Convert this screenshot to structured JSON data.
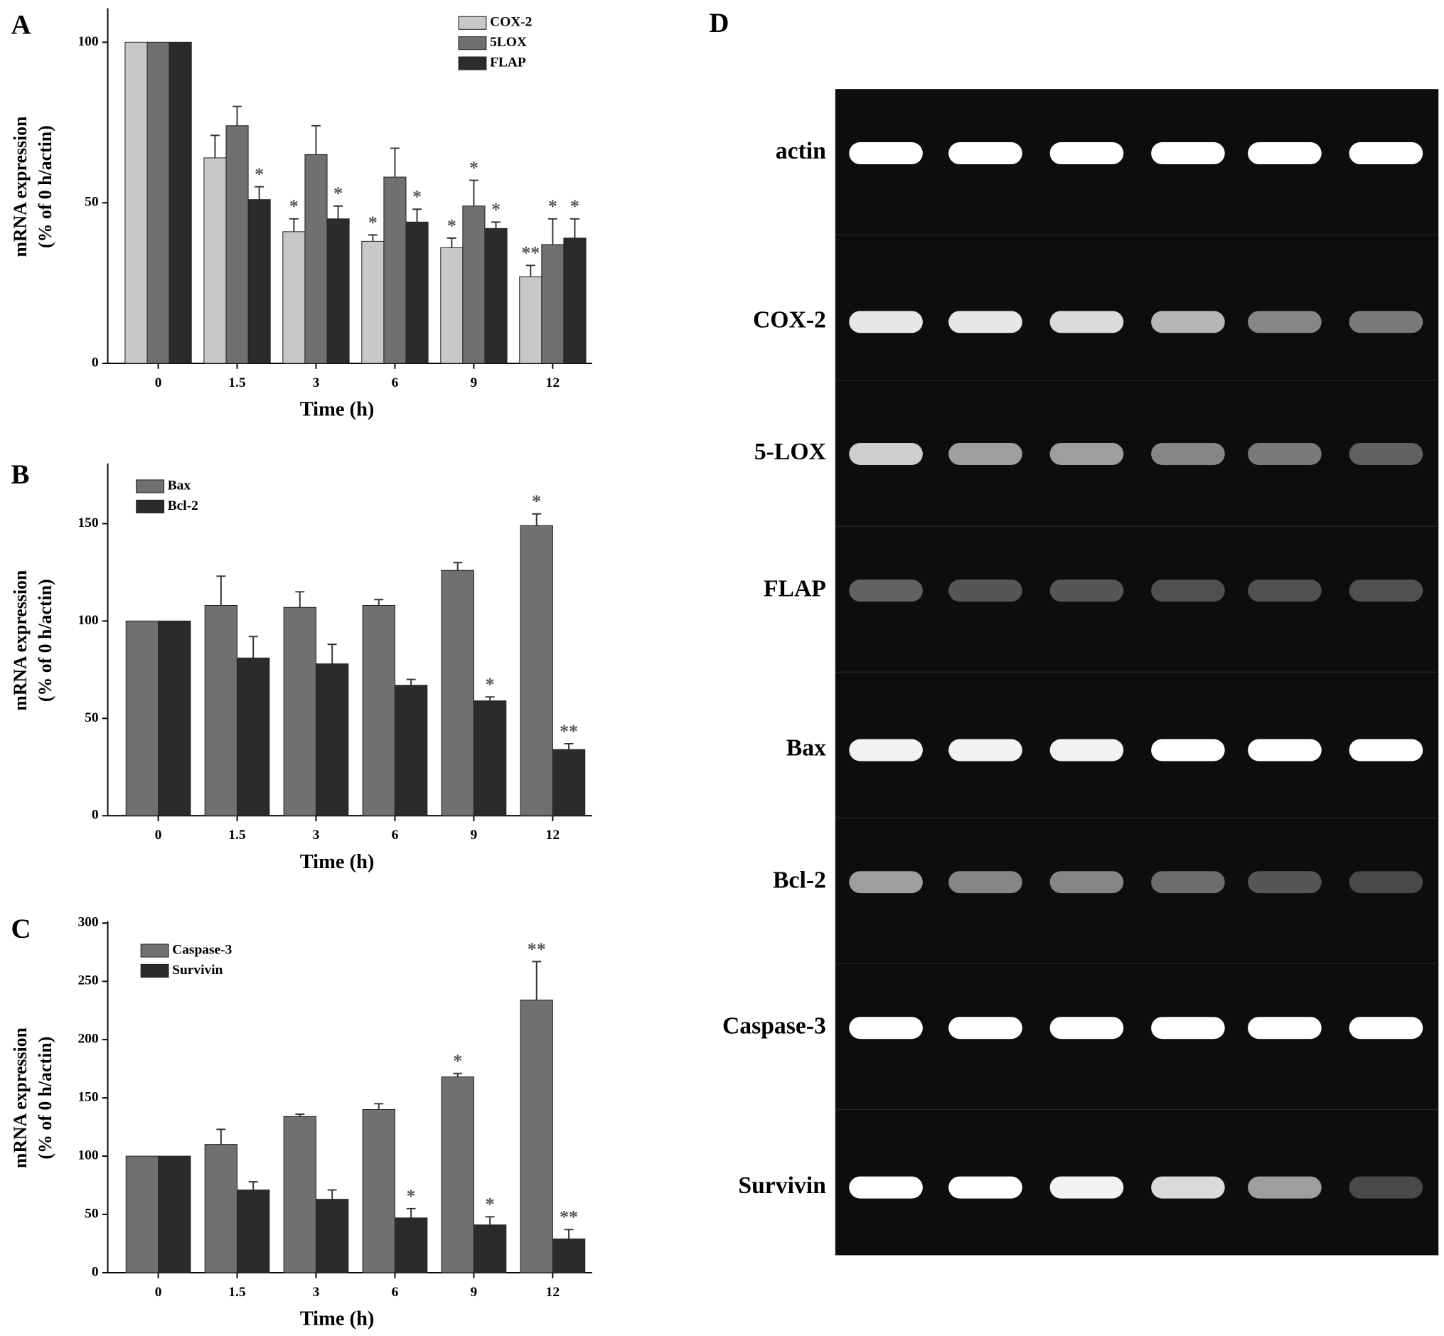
{
  "chart_data": [
    {
      "type": "bar",
      "label": "A",
      "xlabel": "Time (h)",
      "ylabel": [
        "mRNA expression",
        "(% of 0 h/actin)"
      ],
      "categories": [
        "0",
        "1.5",
        "3",
        "6",
        "9",
        "12"
      ],
      "ylim": [
        0,
        110
      ],
      "yticks": [
        0,
        50,
        100
      ],
      "series": [
        {
          "name": "COX-2",
          "color": "#c8c8c8",
          "values": [
            100,
            64,
            41,
            38,
            36,
            27
          ],
          "errors": [
            0,
            7,
            4,
            2,
            3,
            3.5
          ],
          "annotations": [
            null,
            null,
            "*",
            "*",
            "*",
            "**"
          ]
        },
        {
          "name": "5LOX",
          "color": "#707070",
          "values": [
            100,
            74,
            65,
            58,
            49,
            37
          ],
          "errors": [
            0,
            6,
            9,
            9,
            8,
            8
          ],
          "annotations": [
            null,
            null,
            null,
            null,
            "*",
            "*"
          ]
        },
        {
          "name": "FLAP",
          "color": "#2b2b2b",
          "values": [
            100,
            51,
            45,
            44,
            42,
            39
          ],
          "errors": [
            0,
            4,
            4,
            4,
            2,
            6
          ],
          "annotations": [
            null,
            "*",
            "*",
            "*",
            "*",
            "*"
          ]
        }
      ]
    },
    {
      "type": "bar",
      "label": "B",
      "xlabel": "Time (h)",
      "ylabel": [
        "mRNA expression",
        "(% of 0 h/actin)"
      ],
      "categories": [
        "0",
        "1.5",
        "3",
        "6",
        "9",
        "12"
      ],
      "ylim": [
        0,
        180
      ],
      "yticks": [
        0,
        50,
        100,
        150
      ],
      "series": [
        {
          "name": "Bax",
          "color": "#707070",
          "values": [
            100,
            108,
            107,
            108,
            126,
            149
          ],
          "errors": [
            0,
            15,
            8,
            3,
            4,
            6
          ],
          "annotations": [
            null,
            null,
            null,
            null,
            null,
            "*"
          ]
        },
        {
          "name": "Bcl-2",
          "color": "#2b2b2b",
          "values": [
            100,
            81,
            78,
            67,
            59,
            34
          ],
          "errors": [
            0,
            11,
            10,
            3,
            2,
            3
          ],
          "annotations": [
            null,
            null,
            null,
            null,
            "*",
            "**"
          ]
        }
      ]
    },
    {
      "type": "bar",
      "label": "C",
      "xlabel": "Time (h)",
      "ylabel": [
        "mRNA expression",
        "(% of 0 h/actin)"
      ],
      "categories": [
        "0",
        "1.5",
        "3",
        "6",
        "9",
        "12"
      ],
      "ylim": [
        0,
        300
      ],
      "yticks": [
        0,
        50,
        100,
        150,
        200,
        250,
        300
      ],
      "series": [
        {
          "name": "Caspase-3",
          "color": "#707070",
          "values": [
            100,
            110,
            134,
            140,
            168,
            234
          ],
          "errors": [
            0,
            13,
            2,
            5,
            3,
            33
          ],
          "annotations": [
            null,
            null,
            null,
            null,
            "*",
            "**"
          ]
        },
        {
          "name": "Survivin",
          "color": "#2b2b2b",
          "values": [
            100,
            71,
            63,
            47,
            41,
            29
          ],
          "errors": [
            0,
            7,
            8,
            8,
            7,
            8
          ],
          "annotations": [
            null,
            null,
            null,
            "*",
            "*",
            "**"
          ]
        }
      ]
    }
  ],
  "gel": {
    "label": "D",
    "rows": [
      "actin",
      "COX-2",
      "5-LOX",
      "FLAP",
      "Bax",
      "Bcl-2",
      "Caspase-3",
      "Survivin"
    ]
  }
}
